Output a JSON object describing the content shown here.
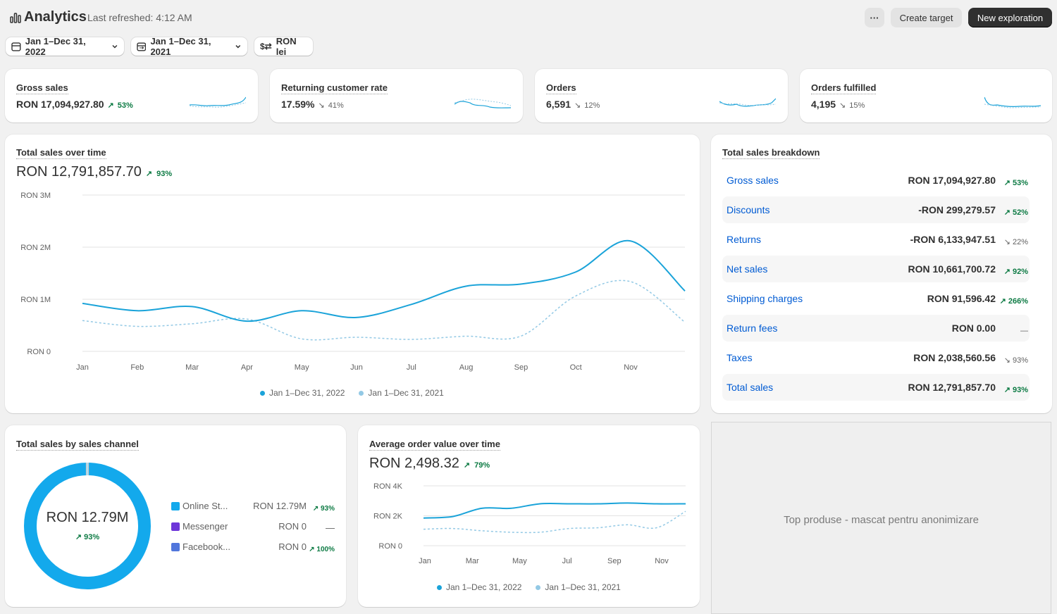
{
  "header": {
    "title": "Analytics",
    "last_refreshed": "Last refreshed: 4:12 AM",
    "more_label": "···",
    "create_target": "Create target",
    "new_exploration": "New exploration"
  },
  "filters": {
    "date_range": "Jan 1–Dec 31, 2022",
    "compare_range": "Jan 1–Dec 31, 2021",
    "currency": "RON lei"
  },
  "metrics": [
    {
      "title": "Gross sales",
      "value": "RON 17,094,927.80",
      "change": "53%",
      "dir": "up"
    },
    {
      "title": "Returning customer rate",
      "value": "17.59%",
      "change": "41%",
      "dir": "down"
    },
    {
      "title": "Orders",
      "value": "6,591",
      "change": "12%",
      "dir": "down"
    },
    {
      "title": "Orders fulfilled",
      "value": "4,195",
      "change": "15%",
      "dir": "down"
    }
  ],
  "total_sales_card": {
    "title": "Total sales over time",
    "value": "RON 12,791,857.70",
    "change": "93%"
  },
  "aov_card": {
    "title": "Average order value over time",
    "value": "RON 2,498.32",
    "change": "79%"
  },
  "chart_data": [
    {
      "type": "line",
      "y_ticks": [
        "RON 3M",
        "RON 2M",
        "RON 1M",
        "RON 0"
      ],
      "x_ticks": [
        "Jan",
        "Feb",
        "Mar",
        "Apr",
        "May",
        "Jun",
        "Jul",
        "Aug",
        "Sep",
        "Oct",
        "Nov"
      ],
      "ylim": [
        0,
        3000000
      ],
      "series": [
        {
          "name": "Jan 1–Dec 31, 2022",
          "color": "#1aa3d9",
          "values": [
            920000,
            780000,
            860000,
            580000,
            780000,
            650000,
            900000,
            1250000,
            1290000,
            1520000,
            2120000,
            1160000
          ]
        },
        {
          "name": "Jan 1–Dec 31, 2021",
          "color": "#93c9e5",
          "values": [
            590000,
            480000,
            530000,
            620000,
            240000,
            270000,
            230000,
            290000,
            290000,
            1060000,
            1340000,
            560000
          ]
        }
      ]
    },
    {
      "type": "line",
      "y_ticks": [
        "RON 4K",
        "RON 2K",
        "RON 0"
      ],
      "x_ticks": [
        "Jan",
        "Mar",
        "May",
        "Jul",
        "Sep",
        "Nov"
      ],
      "ylim": [
        0,
        4000
      ],
      "series": [
        {
          "name": "Jan 1–Dec 31, 2022",
          "color": "#1aa3d9",
          "values": [
            1850,
            1950,
            2500,
            2500,
            2800,
            2800,
            2800,
            2850,
            2800,
            2800
          ]
        },
        {
          "name": "Jan 1–Dec 31, 2021",
          "color": "#93c9e5",
          "values": [
            1100,
            1150,
            1000,
            900,
            900,
            1150,
            1200,
            1400,
            1200,
            2300
          ]
        }
      ]
    },
    {
      "type": "pie",
      "center_value": "RON 12.79M",
      "center_change": "93%",
      "slices": [
        {
          "name": "Online St...",
          "value": 12790000,
          "color": "#13a9ec"
        },
        {
          "name": "Messenger",
          "value": 0,
          "color": "#6d36d9"
        },
        {
          "name": "Facebook...",
          "value": 0,
          "color": "#5176dc"
        }
      ]
    }
  ],
  "breakdown": {
    "title": "Total sales breakdown",
    "rows": [
      {
        "label": "Gross sales",
        "value": "RON 17,094,927.80",
        "change": "53%",
        "dir": "up"
      },
      {
        "label": "Discounts",
        "value": "-RON 299,279.57",
        "change": "52%",
        "dir": "up"
      },
      {
        "label": "Returns",
        "value": "-RON 6,133,947.51",
        "change": "22%",
        "dir": "down"
      },
      {
        "label": "Net sales",
        "value": "RON 10,661,700.72",
        "change": "92%",
        "dir": "up"
      },
      {
        "label": "Shipping charges",
        "value": "RON 91,596.42",
        "change": "266%",
        "dir": "up"
      },
      {
        "label": "Return fees",
        "value": "RON 0.00",
        "change": "—",
        "dir": "none"
      },
      {
        "label": "Taxes",
        "value": "RON 2,038,560.56",
        "change": "93%",
        "dir": "down"
      },
      {
        "label": "Total sales",
        "value": "RON 12,791,857.70",
        "change": "93%",
        "dir": "up"
      }
    ]
  },
  "channels": {
    "title": "Total sales by sales channel",
    "rows": [
      {
        "name": "Online St...",
        "value": "RON 12.79M",
        "change": "93%"
      },
      {
        "name": "Messenger",
        "value": "RON 0",
        "change": "—"
      },
      {
        "name": "Facebook...",
        "value": "RON 0",
        "change": "100%"
      }
    ]
  },
  "top_products": {
    "text": "Top produse - mascat pentru anonimizare"
  },
  "colors": {
    "series_current": "#1aa3d9",
    "series_previous": "#93c9e5",
    "positive": "#0c7a43",
    "link": "#005bd3"
  }
}
